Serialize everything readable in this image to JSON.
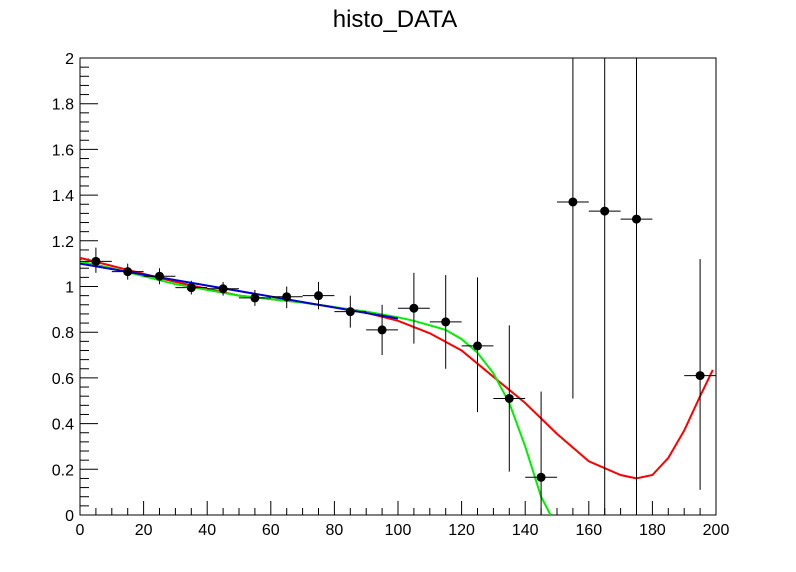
{
  "chart_data": {
    "type": "scatter",
    "title": "histo_DATA",
    "xlabel": "",
    "ylabel": "",
    "xlim": [
      0,
      200
    ],
    "ylim": [
      0,
      2
    ],
    "x_ticks": [
      0,
      20,
      40,
      60,
      80,
      100,
      120,
      140,
      160,
      180,
      200
    ],
    "y_ticks": [
      0,
      0.2,
      0.4,
      0.6,
      0.8,
      1,
      1.2,
      1.4,
      1.6,
      1.8,
      2
    ],
    "x_tick_labels": [
      "0",
      "20",
      "40",
      "60",
      "80",
      "100",
      "120",
      "140",
      "160",
      "180",
      "200"
    ],
    "y_tick_labels": [
      "0",
      "0.2",
      "0.4",
      "0.6",
      "0.8",
      "1",
      "1.2",
      "1.4",
      "1.6",
      "1.8",
      "2"
    ],
    "grid": false,
    "points": [
      {
        "x": 5,
        "y": 1.11,
        "xerr": 5,
        "ylo": 1.06,
        "yhi": 1.17
      },
      {
        "x": 15,
        "y": 1.065,
        "xerr": 5,
        "ylo": 1.03,
        "yhi": 1.1
      },
      {
        "x": 25,
        "y": 1.045,
        "xerr": 5,
        "ylo": 1.01,
        "yhi": 1.08
      },
      {
        "x": 35,
        "y": 0.995,
        "xerr": 5,
        "ylo": 0.965,
        "yhi": 1.025
      },
      {
        "x": 45,
        "y": 0.99,
        "xerr": 5,
        "ylo": 0.96,
        "yhi": 1.02
      },
      {
        "x": 55,
        "y": 0.95,
        "xerr": 5,
        "ylo": 0.915,
        "yhi": 0.985
      },
      {
        "x": 65,
        "y": 0.955,
        "xerr": 5,
        "ylo": 0.905,
        "yhi": 1.0
      },
      {
        "x": 75,
        "y": 0.96,
        "xerr": 5,
        "ylo": 0.9,
        "yhi": 1.02
      },
      {
        "x": 85,
        "y": 0.89,
        "xerr": 5,
        "ylo": 0.82,
        "yhi": 0.96
      },
      {
        "x": 95,
        "y": 0.81,
        "xerr": 5,
        "ylo": 0.7,
        "yhi": 0.92
      },
      {
        "x": 105,
        "y": 0.905,
        "xerr": 5,
        "ylo": 0.75,
        "yhi": 1.06
      },
      {
        "x": 115,
        "y": 0.845,
        "xerr": 5,
        "ylo": 0.64,
        "yhi": 1.05
      },
      {
        "x": 125,
        "y": 0.74,
        "xerr": 5,
        "ylo": 0.45,
        "yhi": 1.04
      },
      {
        "x": 135,
        "y": 0.51,
        "xerr": 5,
        "ylo": 0.19,
        "yhi": 0.83
      },
      {
        "x": 145,
        "y": 0.165,
        "xerr": 5,
        "ylo": 0.0,
        "yhi": 0.54
      },
      {
        "x": 155,
        "y": 1.37,
        "xerr": 5,
        "ylo": 0.51,
        "yhi": 2.0
      },
      {
        "x": 165,
        "y": 1.33,
        "xerr": 5,
        "ylo": 0.0,
        "yhi": 2.0
      },
      {
        "x": 175,
        "y": 1.295,
        "xerr": 5,
        "ylo": 0.0,
        "yhi": 2.0
      },
      {
        "x": 195,
        "y": 0.61,
        "xerr": 5,
        "ylo": 0.11,
        "yhi": 1.12
      }
    ],
    "series": [
      {
        "color": "#ff0000",
        "x": [
          0,
          10,
          20,
          30,
          40,
          50,
          60,
          70,
          80,
          90,
          100,
          110,
          120,
          130,
          140,
          150,
          160,
          170,
          175,
          180,
          185,
          190,
          195,
          199
        ],
        "y": [
          1.125,
          1.09,
          1.055,
          1.02,
          0.99,
          0.96,
          0.945,
          0.93,
          0.91,
          0.885,
          0.85,
          0.795,
          0.72,
          0.605,
          0.49,
          0.355,
          0.235,
          0.175,
          0.16,
          0.175,
          0.25,
          0.37,
          0.52,
          0.635
        ]
      },
      {
        "color": "#00ee00",
        "x": [
          0,
          10,
          20,
          30,
          40,
          50,
          60,
          70,
          80,
          90,
          100,
          105,
          110,
          115,
          120,
          125,
          130,
          135,
          140,
          145,
          148
        ],
        "y": [
          1.11,
          1.08,
          1.045,
          1.01,
          0.985,
          0.96,
          0.945,
          0.93,
          0.91,
          0.89,
          0.865,
          0.85,
          0.83,
          0.81,
          0.77,
          0.71,
          0.62,
          0.49,
          0.3,
          0.08,
          0.0
        ]
      },
      {
        "color": "#0000cc",
        "x": [
          0,
          100
        ],
        "y": [
          1.1,
          0.86
        ]
      }
    ]
  }
}
